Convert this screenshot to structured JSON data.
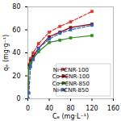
{
  "chart_data": {
    "type": "line",
    "xlabel": "Cₑ (mg·L⁻¹)",
    "ylabel": "qₑ (mg·g⁻¹)",
    "x": [
      0,
      2,
      5,
      10,
      20,
      40,
      60,
      80,
      120
    ],
    "xlim": [
      0,
      160
    ],
    "ylim": [
      0,
      80
    ],
    "xticks": [
      0,
      40,
      80,
      120,
      160
    ],
    "yticks": [
      0,
      20,
      40,
      60,
      80
    ],
    "grid": false,
    "legend": "lower right",
    "series": [
      {
        "name": "Ni PCNR-100",
        "color": "#e03030",
        "marker": "square",
        "line_style": "dashed",
        "values": [
          0,
          30,
          35,
          40,
          48,
          58,
          63,
          67,
          76
        ]
      },
      {
        "name": "Co PCNR-100",
        "color": "#8b0000",
        "marker": "square",
        "line_style": "solid",
        "values": [
          0,
          29,
          33,
          37,
          44,
          54,
          58,
          62,
          65
        ]
      },
      {
        "name": "Co PCNR-850",
        "color": "#2e8b22",
        "marker": "square",
        "line_style": "solid",
        "values": [
          0,
          27,
          31,
          35,
          41,
          49,
          51,
          53,
          55
        ]
      },
      {
        "name": "Ni PCNR-850",
        "color": "#3060c0",
        "marker": "square",
        "line_style": "dashed",
        "values": [
          0,
          5,
          28,
          34,
          44,
          52,
          57,
          60,
          64
        ]
      }
    ]
  }
}
